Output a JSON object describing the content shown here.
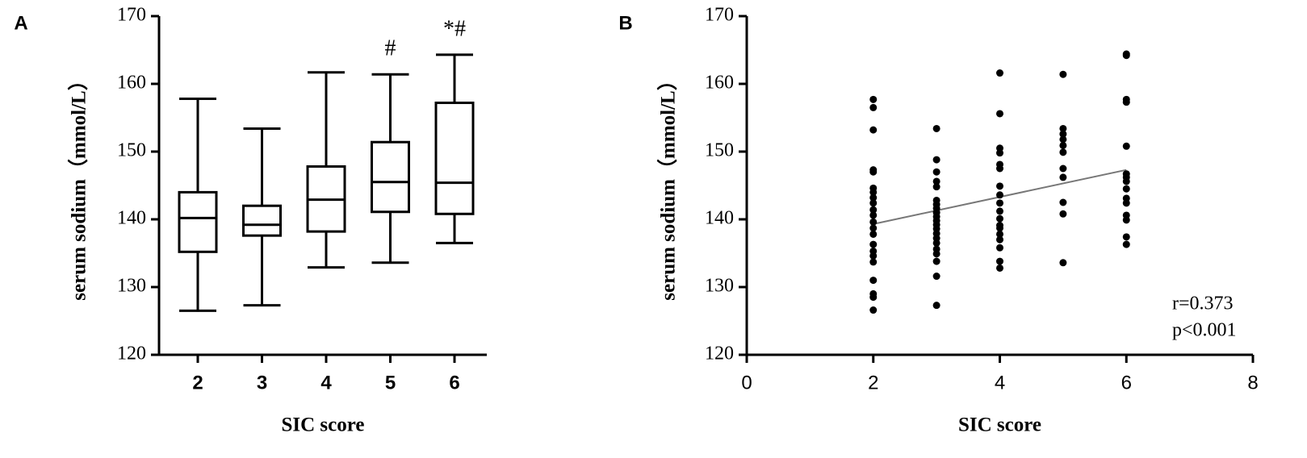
{
  "chart_data": [
    {
      "type": "box",
      "panel_label": "A",
      "x_label": "SIC score",
      "y_label": "serum sodium（mmol/L）",
      "categories": [
        "2",
        "3",
        "4",
        "5",
        "6"
      ],
      "boxes": [
        {
          "min": 126.5,
          "q1": 135.2,
          "median": 140.2,
          "q3": 144.0,
          "max": 157.8
        },
        {
          "min": 127.3,
          "q1": 137.6,
          "median": 139.2,
          "q3": 142.0,
          "max": 153.4
        },
        {
          "min": 132.9,
          "q1": 138.2,
          "median": 142.9,
          "q3": 147.8,
          "max": 161.7
        },
        {
          "min": 133.6,
          "q1": 141.1,
          "median": 145.5,
          "q3": 151.4,
          "max": 161.4
        },
        {
          "min": 136.5,
          "q1": 140.8,
          "median": 145.4,
          "q3": 157.2,
          "max": 164.3
        }
      ],
      "annotations": [
        {
          "category": "5",
          "text": "#"
        },
        {
          "category": "6",
          "text": "*#"
        }
      ],
      "ylim": [
        120,
        170
      ],
      "yticks": [
        120,
        130,
        140,
        150,
        160,
        170
      ],
      "color": "#000000"
    },
    {
      "type": "scatter",
      "panel_label": "B",
      "x_label": "SIC score",
      "y_label": "serum sodium（mmol/L）",
      "x": [
        2,
        2,
        2,
        2,
        2,
        2,
        2,
        2,
        2,
        2,
        2,
        2,
        2,
        2,
        2,
        2,
        2,
        2,
        2,
        2,
        2,
        2,
        3,
        3,
        3,
        3,
        3,
        3,
        3,
        3,
        3,
        3,
        3,
        3,
        3,
        3,
        3,
        3,
        3,
        3,
        3,
        3,
        3,
        4,
        4,
        4,
        4,
        4,
        4,
        4,
        4,
        4,
        4,
        4,
        4,
        4,
        4,
        4,
        4,
        4,
        4,
        5,
        5,
        5,
        5,
        5,
        5,
        5,
        5,
        5,
        5,
        5,
        6,
        6,
        6,
        6,
        6,
        6,
        6,
        6,
        6,
        6,
        6,
        6,
        6,
        6,
        6
      ],
      "y": [
        157.7,
        156.5,
        153.2,
        147.3,
        147.0,
        144.6,
        144.0,
        143.2,
        142.4,
        141.4,
        140.6,
        139.6,
        138.7,
        137.8,
        136.3,
        135.3,
        134.6,
        133.7,
        131.0,
        129.0,
        128.5,
        126.6,
        153.4,
        148.8,
        147.0,
        145.6,
        144.8,
        142.8,
        142.2,
        141.6,
        141.0,
        140.4,
        139.8,
        139.2,
        138.6,
        137.9,
        137.2,
        136.5,
        135.6,
        134.9,
        133.8,
        131.6,
        127.3,
        161.6,
        155.6,
        150.5,
        149.8,
        148.1,
        147.5,
        144.9,
        143.6,
        142.4,
        141.2,
        140.1,
        139.1,
        138.7,
        137.8,
        137.0,
        135.8,
        133.8,
        132.8,
        161.4,
        153.4,
        152.6,
        151.8,
        150.9,
        149.9,
        147.5,
        146.2,
        142.5,
        140.8,
        133.6,
        164.4,
        164.2,
        157.7,
        157.3,
        150.8,
        146.7,
        146.2,
        145.6,
        144.5,
        143.1,
        142.4,
        140.6,
        139.9,
        137.4,
        136.3
      ],
      "trend": {
        "x": [
          2,
          6
        ],
        "y": [
          139.3,
          147.3
        ]
      },
      "stats": [
        "r=0.373",
        "p<0.001"
      ],
      "xlim": [
        0,
        8
      ],
      "xticks": [
        0,
        2,
        4,
        6,
        8
      ],
      "ylim": [
        120,
        170
      ],
      "yticks": [
        120,
        130,
        140,
        150,
        160,
        170
      ],
      "color": "#000000",
      "trend_color": "#777777"
    }
  ]
}
